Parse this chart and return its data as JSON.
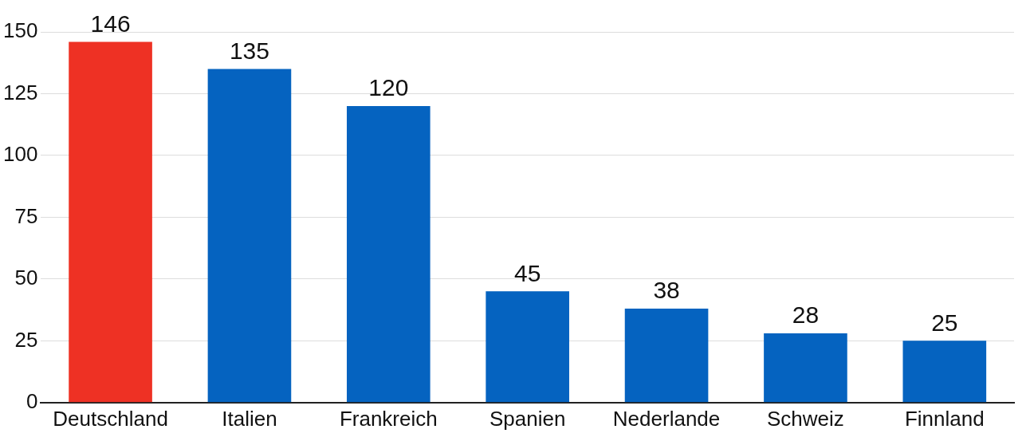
{
  "chart_data": {
    "type": "bar",
    "categories": [
      "Deutschland",
      "Italien",
      "Frankreich",
      "Spanien",
      "Nederlande",
      "Schweiz",
      "Finnland"
    ],
    "values": [
      146,
      135,
      120,
      45,
      38,
      28,
      25
    ],
    "colors": [
      "#ee3124",
      "#0563c0",
      "#0563c0",
      "#0563c0",
      "#0563c0",
      "#0563c0",
      "#0563c0"
    ],
    "ylim": [
      0,
      150
    ],
    "yticks": [
      0,
      25,
      50,
      75,
      100,
      125,
      150
    ],
    "grid": "y",
    "data_labels": true
  }
}
